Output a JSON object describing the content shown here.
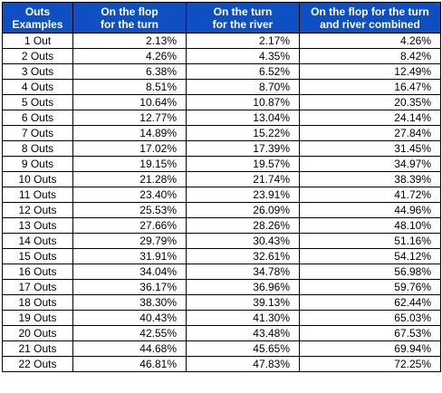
{
  "header": {
    "col0": [
      "Outs",
      "Examples"
    ],
    "col1": [
      "On the flop",
      "for the turn"
    ],
    "col2": [
      "On the turn",
      "for the river"
    ],
    "col3": [
      "On the flop for the turn",
      "and river combined"
    ]
  },
  "colors": {
    "header_bg": "#0f4fc4",
    "header_text": "#ffffff",
    "grid": "#000000"
  },
  "rows": [
    {
      "outs": "1 Out",
      "flop": "2.13%",
      "turn": "2.17%",
      "combined": "4.26%"
    },
    {
      "outs": "2 Outs",
      "flop": "4.26%",
      "turn": "4.35%",
      "combined": "8.42%"
    },
    {
      "outs": "3 Outs",
      "flop": "6.38%",
      "turn": "6.52%",
      "combined": "12.49%"
    },
    {
      "outs": "4 Outs",
      "flop": "8.51%",
      "turn": "8.70%",
      "combined": "16.47%"
    },
    {
      "outs": "5 Outs",
      "flop": "10.64%",
      "turn": "10.87%",
      "combined": "20.35%"
    },
    {
      "outs": "6 Outs",
      "flop": "12.77%",
      "turn": "13.04%",
      "combined": "24.14%"
    },
    {
      "outs": "7 Outs",
      "flop": "14.89%",
      "turn": "15.22%",
      "combined": "27.84%"
    },
    {
      "outs": "8 Outs",
      "flop": "17.02%",
      "turn": "17.39%",
      "combined": "31.45%"
    },
    {
      "outs": "9 Outs",
      "flop": "19.15%",
      "turn": "19.57%",
      "combined": "34.97%"
    },
    {
      "outs": "10 Outs",
      "flop": "21.28%",
      "turn": "21.74%",
      "combined": "38.39%"
    },
    {
      "outs": "11 Outs",
      "flop": "23.40%",
      "turn": "23.91%",
      "combined": "41.72%"
    },
    {
      "outs": "12 Outs",
      "flop": "25.53%",
      "turn": "26.09%",
      "combined": "44.96%"
    },
    {
      "outs": "13 Outs",
      "flop": "27.66%",
      "turn": "28.26%",
      "combined": "48.10%"
    },
    {
      "outs": "14 Outs",
      "flop": "29.79%",
      "turn": "30.43%",
      "combined": "51.16%"
    },
    {
      "outs": "15 Outs",
      "flop": "31.91%",
      "turn": "32.61%",
      "combined": "54.12%"
    },
    {
      "outs": "16 Outs",
      "flop": "34.04%",
      "turn": "34.78%",
      "combined": "56.98%"
    },
    {
      "outs": "17 Outs",
      "flop": "36.17%",
      "turn": "36.96%",
      "combined": "59.76%"
    },
    {
      "outs": "18 Outs",
      "flop": "38.30%",
      "turn": "39.13%",
      "combined": "62.44%"
    },
    {
      "outs": "19 Outs",
      "flop": "40.43%",
      "turn": "41.30%",
      "combined": "65.03%"
    },
    {
      "outs": "20 Outs",
      "flop": "42.55%",
      "turn": "43.48%",
      "combined": "67.53%"
    },
    {
      "outs": "21 Outs",
      "flop": "44.68%",
      "turn": "45.65%",
      "combined": "69.94%"
    },
    {
      "outs": "22 Outs",
      "flop": "46.81%",
      "turn": "47.83%",
      "combined": "72.25%"
    }
  ]
}
